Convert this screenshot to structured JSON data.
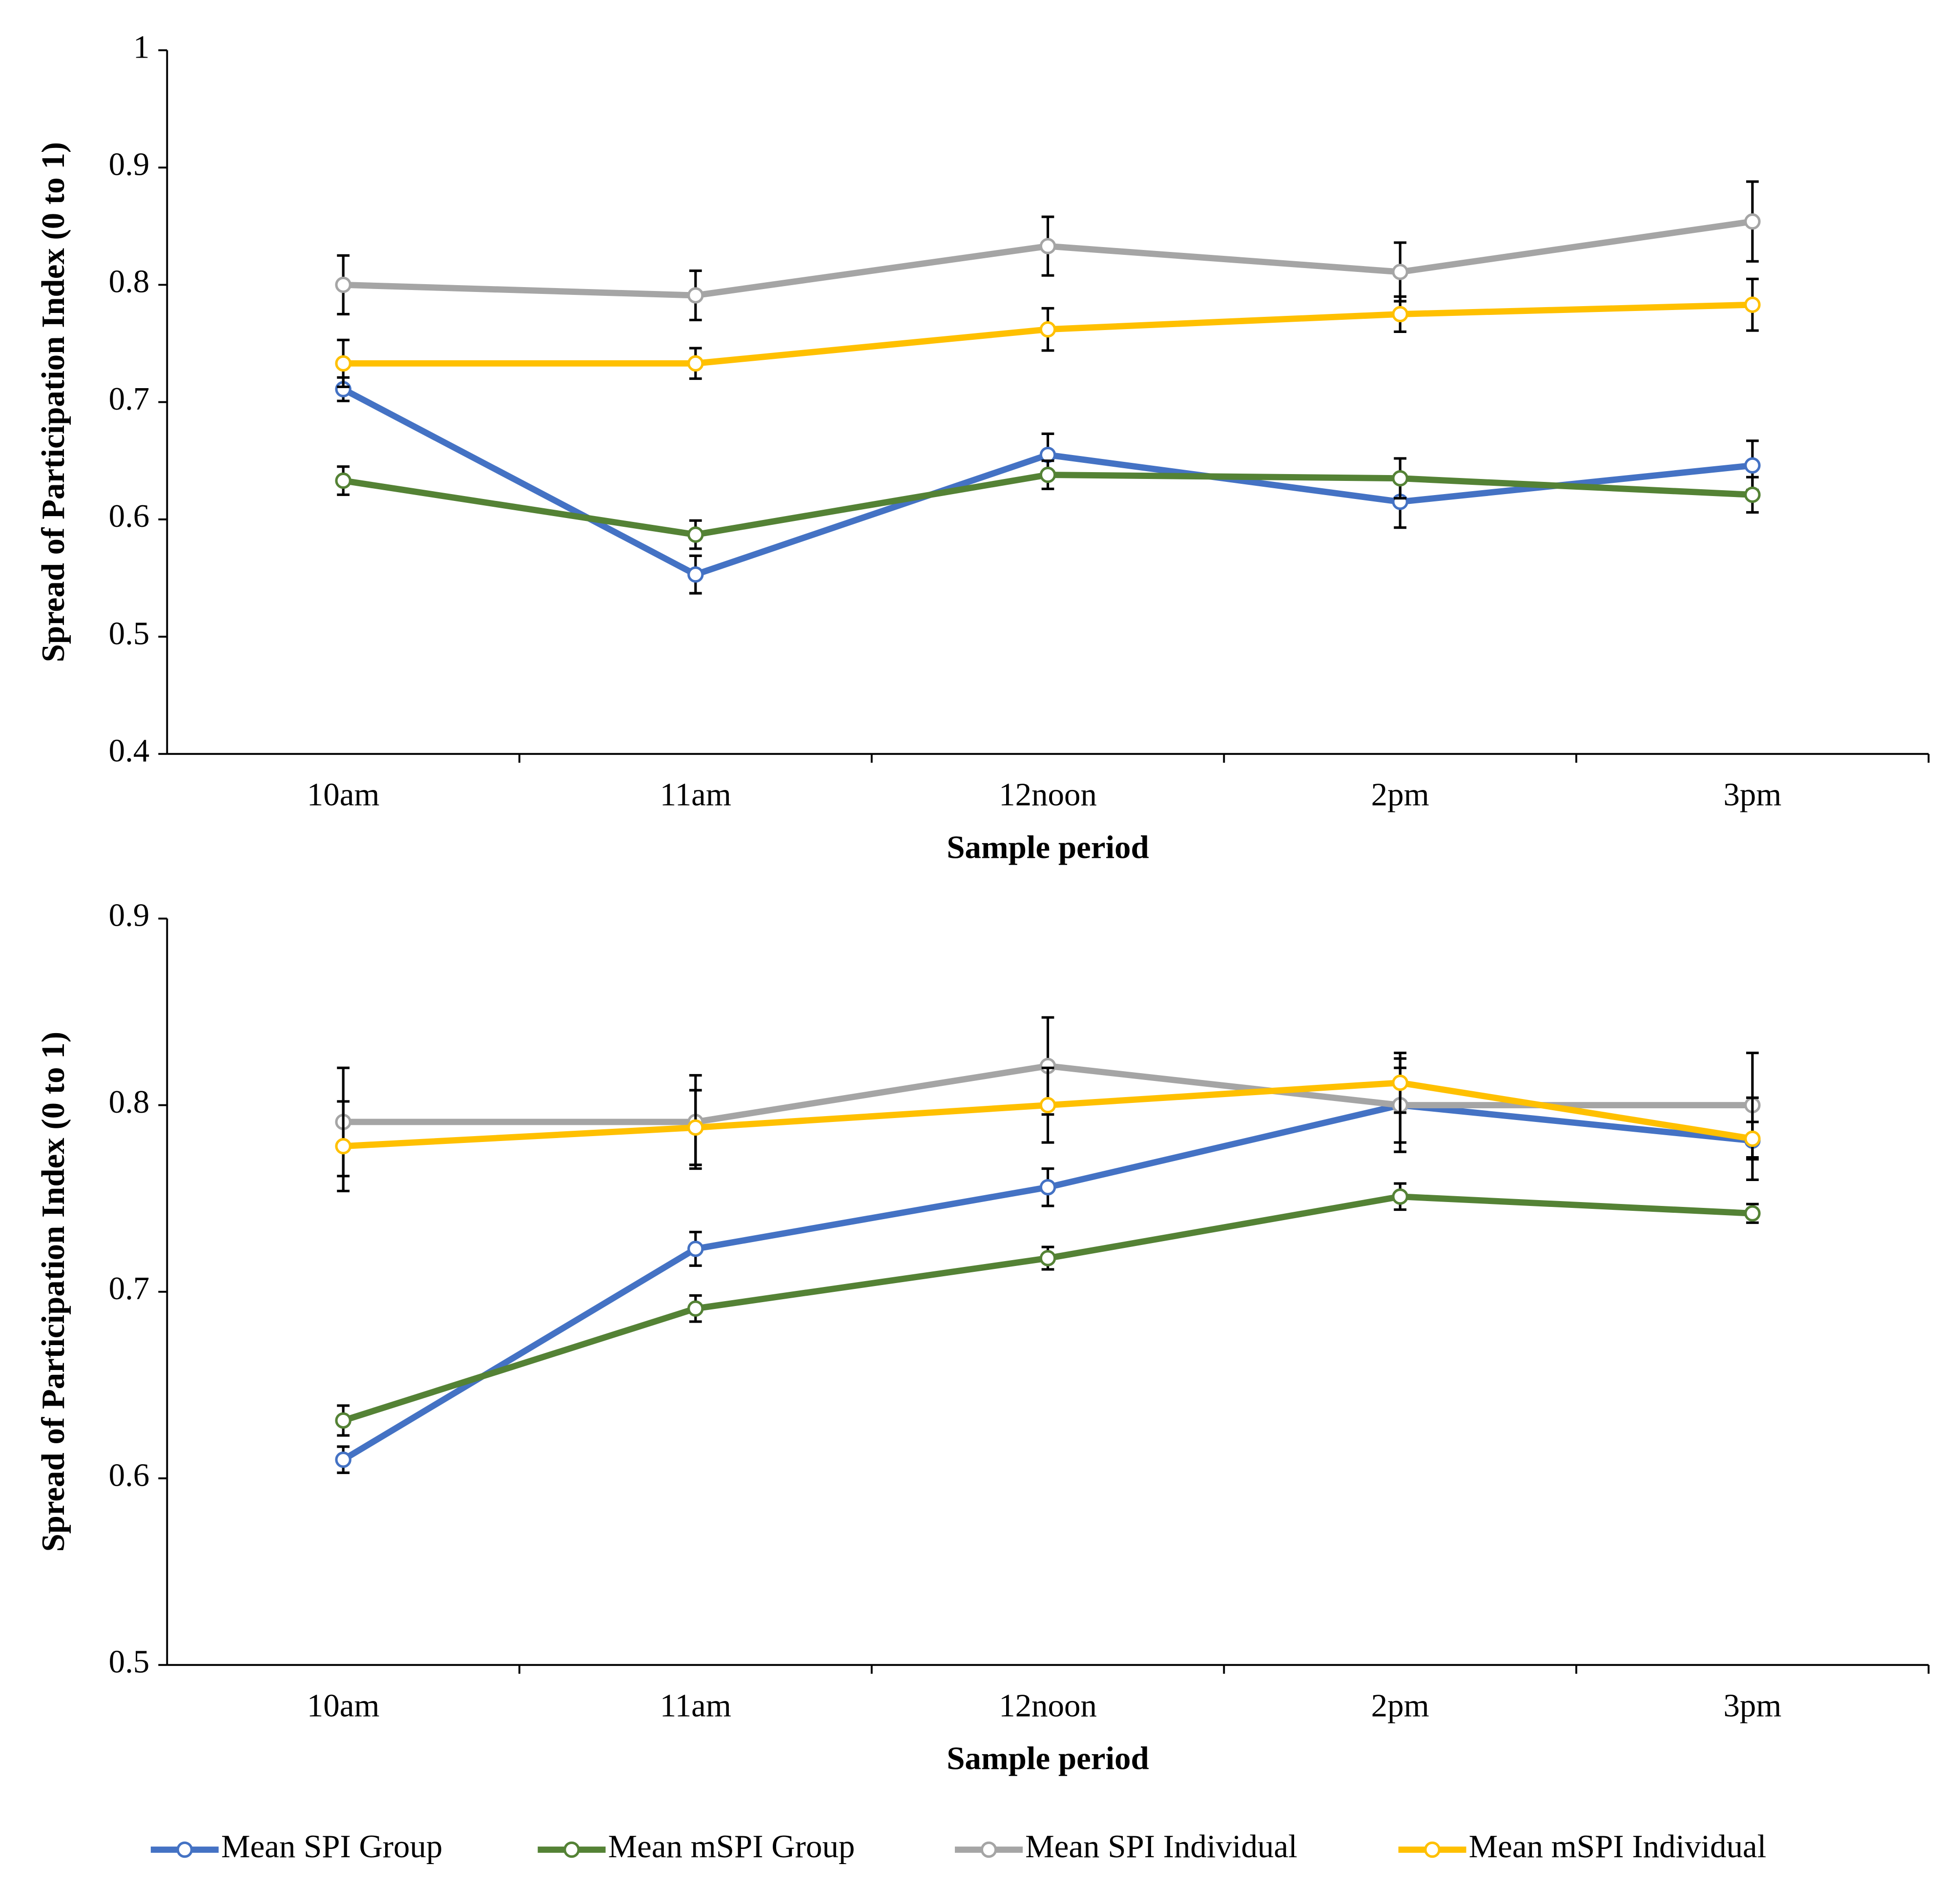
{
  "chart_data": [
    {
      "type": "line",
      "x_label": "Sample period",
      "y_label": "Spread of Participation Index (0 to 1)",
      "categories": [
        "10am",
        "11am",
        "12noon",
        "2pm",
        "3pm"
      ],
      "ylim": [
        0.4,
        1
      ],
      "yticks": [
        0.4,
        0.5,
        0.6,
        0.7,
        0.8,
        0.9,
        1
      ],
      "series": [
        {
          "name": "Mean SPI Group",
          "color": "#4472c4",
          "values": [
            0.711,
            0.553,
            0.655,
            0.615,
            0.646
          ],
          "errors": [
            0.01,
            0.016,
            0.018,
            0.022,
            0.021
          ]
        },
        {
          "name": "Mean mSPI Group",
          "color": "#548235",
          "values": [
            0.633,
            0.587,
            0.638,
            0.635,
            0.621
          ],
          "errors": [
            0.012,
            0.012,
            0.012,
            0.017,
            0.015
          ]
        },
        {
          "name": "Mean SPI Individual",
          "color": "#a5a5a5",
          "values": [
            0.8,
            0.791,
            0.833,
            0.811,
            0.854
          ],
          "errors": [
            0.025,
            0.021,
            0.025,
            0.025,
            0.034
          ]
        },
        {
          "name": "Mean mSPI Individual",
          "color": "#ffc000",
          "values": [
            0.733,
            0.733,
            0.762,
            0.775,
            0.783
          ],
          "errors": [
            0.02,
            0.013,
            0.018,
            0.015,
            0.022
          ]
        }
      ]
    },
    {
      "type": "line",
      "x_label": "Sample period",
      "y_label": "Spread of Participation Index (0 to 1)",
      "categories": [
        "10am",
        "11am",
        "12noon",
        "2pm",
        "3pm"
      ],
      "ylim": [
        0.5,
        0.9
      ],
      "yticks": [
        0.5,
        0.6,
        0.7,
        0.8,
        0.9
      ],
      "series": [
        {
          "name": "Mean SPI Group",
          "color": "#4472c4",
          "values": [
            0.61,
            0.723,
            0.756,
            0.8,
            0.781
          ],
          "errors": [
            0.007,
            0.009,
            0.01,
            0.02,
            0.01
          ]
        },
        {
          "name": "Mean mSPI Group",
          "color": "#548235",
          "values": [
            0.631,
            0.691,
            0.718,
            0.751,
            0.742
          ],
          "errors": [
            0.008,
            0.007,
            0.006,
            0.007,
            0.005
          ]
        },
        {
          "name": "Mean SPI Individual",
          "color": "#a5a5a5",
          "values": [
            0.791,
            0.791,
            0.821,
            0.8,
            0.8
          ],
          "errors": [
            0.029,
            0.025,
            0.026,
            0.025,
            0.028
          ]
        },
        {
          "name": "Mean mSPI Individual",
          "color": "#ffc000",
          "values": [
            0.778,
            0.788,
            0.8,
            0.812,
            0.782
          ],
          "errors": [
            0.024,
            0.02,
            0.02,
            0.016,
            0.022
          ]
        }
      ]
    }
  ]
}
